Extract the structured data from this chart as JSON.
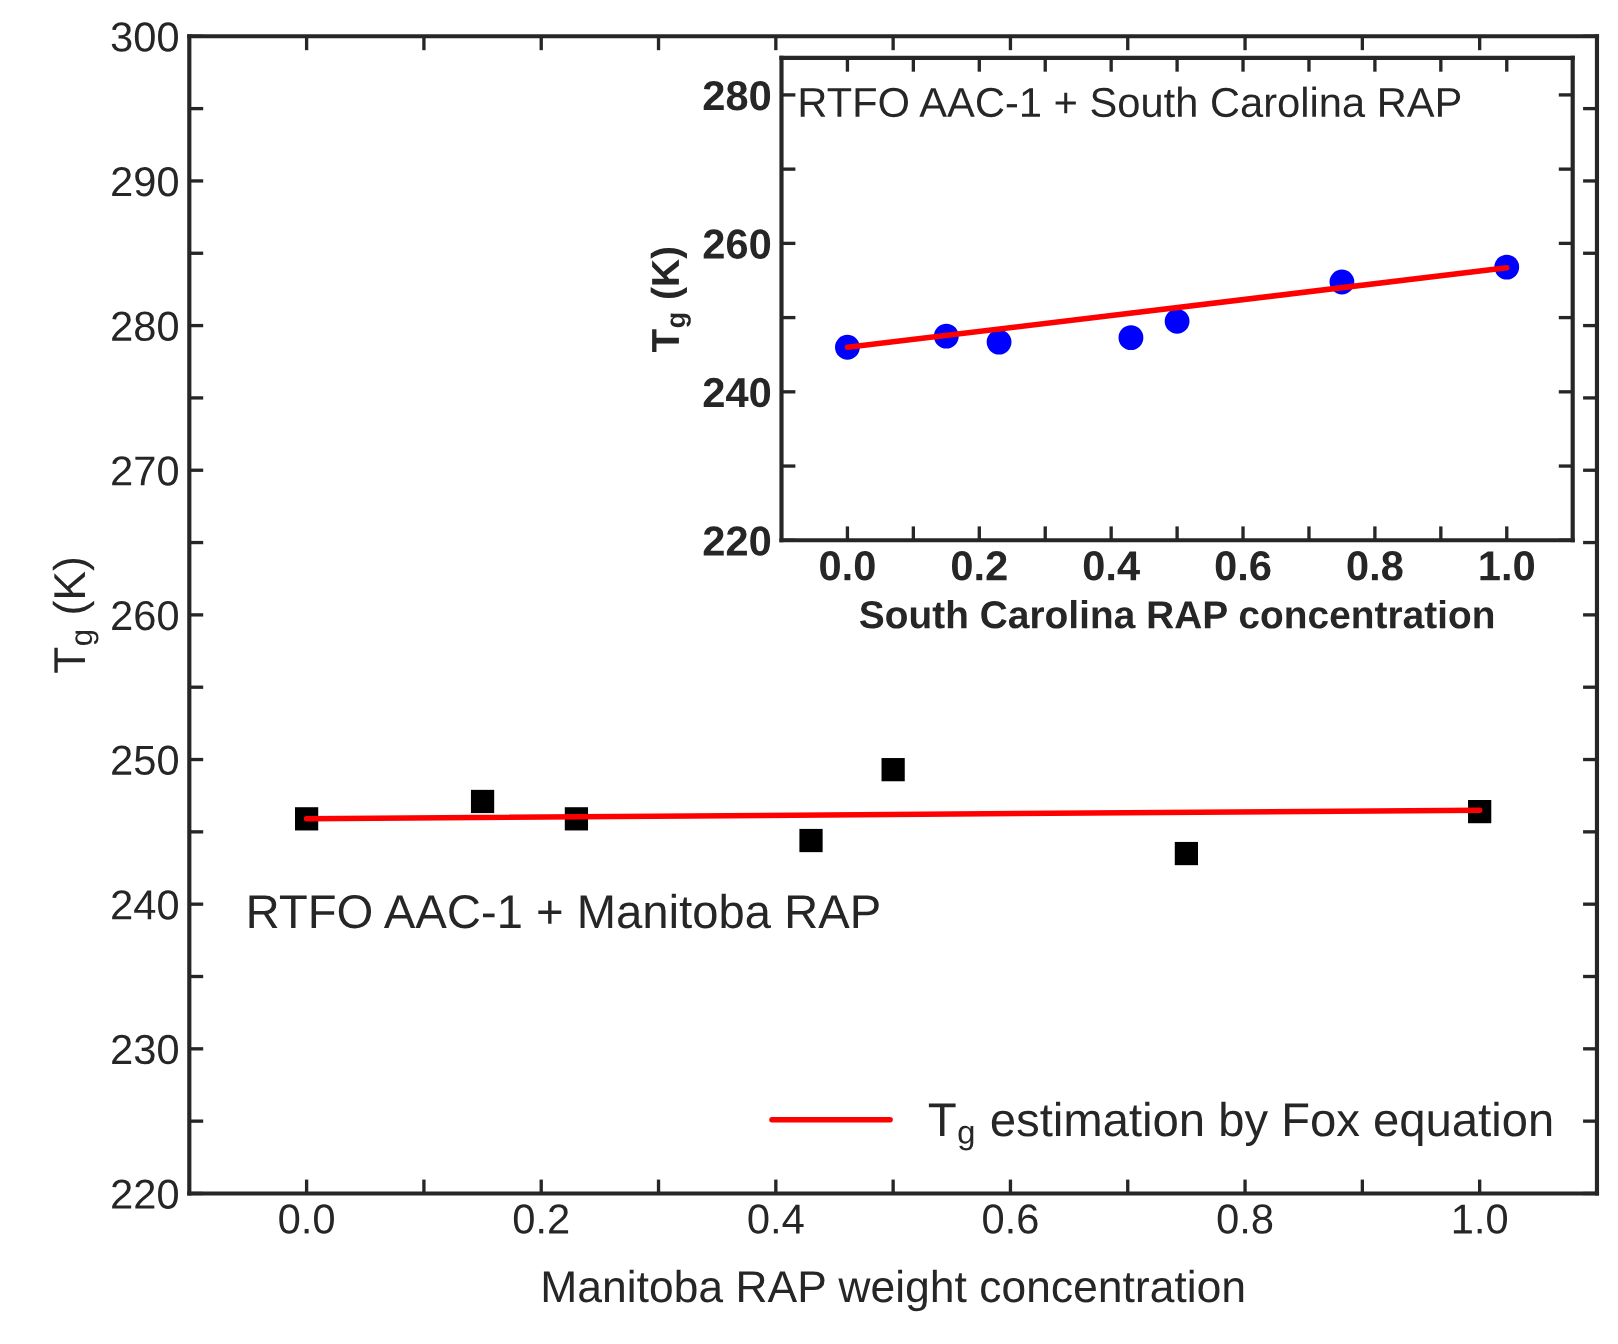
{
  "chart_data": [
    {
      "type": "scatter",
      "xlabel": "Manitoba RAP weight concentration",
      "ylabel": "T$_{g}$ (K)",
      "xlim": [
        -0.1,
        1.1
      ],
      "ylim": [
        220,
        300
      ],
      "xticks": [
        {
          "value": 0,
          "label": "0.0"
        },
        {
          "value": 0.1,
          "label": null
        },
        {
          "value": 0.2,
          "label": "0.2"
        },
        {
          "value": 0.3,
          "label": null
        },
        {
          "value": 0.4,
          "label": "0.4"
        },
        {
          "value": 0.5,
          "label": null
        },
        {
          "value": 0.6,
          "label": "0.6"
        },
        {
          "value": 0.7,
          "label": null
        },
        {
          "value": 0.8,
          "label": "0.8"
        },
        {
          "value": 0.9,
          "label": null
        },
        {
          "value": 1,
          "label": "1.0"
        }
      ],
      "yticks": [
        220,
        {
          "value": 225,
          "label": null
        },
        230,
        {
          "value": 235,
          "label": null
        },
        240,
        {
          "value": 245,
          "label": null
        },
        250,
        {
          "value": 255,
          "label": null
        },
        260,
        {
          "value": 265,
          "label": null
        },
        270,
        {
          "value": 275,
          "label": null
        },
        280,
        {
          "value": 285,
          "label": null
        },
        290,
        {
          "value": 295,
          "label": null
        },
        300
      ],
      "series": [
        {
          "color": "#000000",
          "marker": "square",
          "x": [
            0,
            0.15,
            0.23,
            0.43,
            0.5,
            0.75,
            1.0
          ],
          "values": [
            245.9,
            247.1,
            245.9,
            244.4,
            249.3,
            243.5,
            246.4
          ]
        },
        {
          "type": "line",
          "name": "T$_{g}$ estimation by Fox equation",
          "color": "#ff0000",
          "marker": "none",
          "line_style": "solid",
          "x": [
            0,
            1
          ],
          "values": [
            245.9,
            246.5
          ]
        }
      ],
      "annotations": [
        "RTFO AAC-1 + Manitoba RAP"
      ],
      "legend": "bottom right",
      "grid": false
    },
    {
      "type": "scatter",
      "xlabel": "South Carolina RAP concentration",
      "ylabel": "T$_{g}$ (K)",
      "xlim": [
        -0.1,
        1.1
      ],
      "ylim": [
        220,
        285
      ],
      "xticks": [
        {
          "value": 0,
          "label": "0.0"
        },
        {
          "value": 0.1,
          "label": null
        },
        {
          "value": 0.2,
          "label": "0.2"
        },
        {
          "value": 0.3,
          "label": null
        },
        {
          "value": 0.4,
          "label": "0.4"
        },
        {
          "value": 0.5,
          "label": null
        },
        {
          "value": 0.6,
          "label": "0.6"
        },
        {
          "value": 0.7,
          "label": null
        },
        {
          "value": 0.8,
          "label": "0.8"
        },
        {
          "value": 0.9,
          "label": null
        },
        {
          "value": 1,
          "label": "1.0"
        }
      ],
      "yticks": [
        220,
        {
          "value": 230,
          "label": null
        },
        240,
        {
          "value": 250,
          "label": null
        },
        260,
        {
          "value": 270,
          "label": null
        },
        280
      ],
      "series": [
        {
          "color": "#0000ff",
          "marker": "circle",
          "x": [
            0,
            0.15,
            0.23,
            0.43,
            0.5,
            0.75,
            1.0
          ],
          "values": [
            246.0,
            247.5,
            246.7,
            247.3,
            249.5,
            254.8,
            256.8
          ]
        },
        {
          "type": "line",
          "color": "#ff0000",
          "marker": "none",
          "line_style": "solid",
          "x": [
            0,
            1
          ],
          "values": [
            246.0,
            256.7
          ]
        }
      ],
      "annotations": [
        "RTFO AAC-1 + South Carolina RAP"
      ],
      "grid": false
    }
  ]
}
